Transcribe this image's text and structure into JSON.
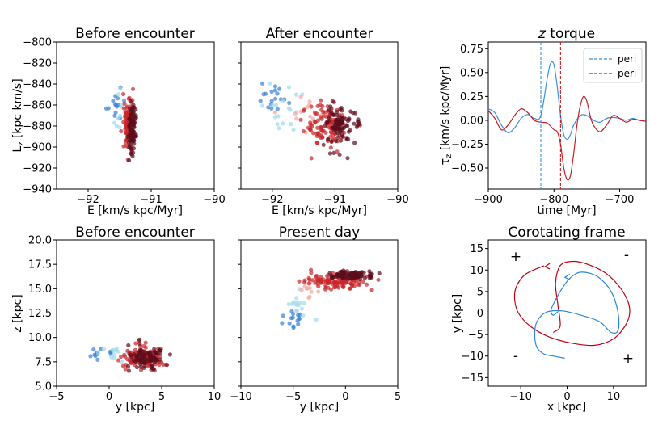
{
  "chart_data": [
    {
      "type": "scatter",
      "title": "Before encounter",
      "xlabel": "E [km/s kpc/Myr]",
      "ylabel": "L_z [kpc km/s]",
      "xlim": [
        -92.5,
        -90
      ],
      "ylim": [
        -940,
        -800
      ],
      "xticks": [
        -92,
        -91,
        -90
      ],
      "xticklabels": [
        "−92",
        "−91",
        "−90"
      ],
      "yticks": [
        -940,
        -920,
        -900,
        -880,
        -860,
        -840,
        -820,
        -800
      ],
      "yticklabels": [
        "−940",
        "−920",
        "−900",
        "−880",
        "−860",
        "−840",
        "−820",
        "−800"
      ],
      "groups": [
        {
          "name": "blue",
          "color": "#3a7fd6",
          "x_center": -91.53,
          "x_spread": 0.06,
          "y_center": -858,
          "y_spread": 9,
          "n": 14
        },
        {
          "name": "light-blue",
          "color": "#9fd8ee",
          "x_center": -91.47,
          "x_spread": 0.05,
          "y_center": -865,
          "y_spread": 10,
          "n": 12
        },
        {
          "name": "red",
          "color": "#c8262b",
          "x_center": -91.36,
          "x_spread": 0.04,
          "y_center": -878,
          "y_spread": 13,
          "n": 120
        },
        {
          "name": "dark-red",
          "color": "#5c0d1b",
          "x_center": -91.3,
          "x_spread": 0.03,
          "y_center": -880,
          "y_spread": 12,
          "n": 80
        }
      ]
    },
    {
      "type": "scatter",
      "title": "After encounter",
      "xlabel": "E [km/s kpc/Myr]",
      "ylabel": "",
      "xlim": [
        -92.5,
        -90
      ],
      "ylim": [
        -940,
        -800
      ],
      "xticks": [
        -92,
        -91,
        -90
      ],
      "xticklabels": [
        "−92",
        "−91",
        "−90"
      ],
      "groups": [
        {
          "name": "blue",
          "color": "#3a7fd6",
          "x_center": -92.0,
          "x_spread": 0.12,
          "y_center": -852,
          "y_spread": 9,
          "n": 18
        },
        {
          "name": "light-blue",
          "color": "#9fd8ee",
          "x_center": -91.85,
          "x_spread": 0.15,
          "y_center": -862,
          "y_spread": 10,
          "n": 18
        },
        {
          "name": "light-red",
          "color": "#f4a6a0",
          "x_center": -91.5,
          "x_spread": 0.15,
          "y_center": -870,
          "y_spread": 8,
          "n": 15
        },
        {
          "name": "red",
          "color": "#c8262b",
          "x_center": -91.15,
          "x_spread": 0.18,
          "y_center": -878,
          "y_spread": 10,
          "n": 110
        },
        {
          "name": "dark-red",
          "color": "#5c0d1b",
          "x_center": -90.9,
          "x_spread": 0.12,
          "y_center": -880,
          "y_spread": 9,
          "n": 90
        }
      ]
    },
    {
      "type": "line",
      "title": "z torque",
      "xlabel": "time [Myr]",
      "ylabel": "τ_z [km/s kpc/Myr]",
      "xlim": [
        -900,
        -660
      ],
      "ylim": [
        -0.72,
        0.82
      ],
      "xticks": [
        -900,
        -800,
        -700
      ],
      "xticklabels": [
        "−900",
        "−800",
        "−700"
      ],
      "yticks": [
        -0.5,
        -0.25,
        0.0,
        0.25,
        0.5,
        0.75
      ],
      "yticklabels": [
        "−0.50",
        "−0.25",
        "0.00",
        "0.25",
        "0.50",
        "0.75"
      ],
      "series": [
        {
          "name": "blue",
          "color": "#3a8fe0",
          "x": [
            -900,
            -890,
            -880,
            -870,
            -860,
            -850,
            -840,
            -830,
            -820,
            -810,
            -805,
            -800,
            -795,
            -790,
            -785,
            -780,
            -775,
            -770,
            -760,
            -750,
            -740,
            -730,
            -720,
            -710,
            -700,
            -690,
            -680,
            -670,
            -660
          ],
          "y": [
            0.12,
            0.08,
            -0.05,
            -0.13,
            -0.08,
            0.02,
            0.06,
            0.02,
            0.05,
            0.45,
            0.6,
            0.58,
            0.35,
            0.05,
            -0.15,
            -0.2,
            -0.15,
            -0.05,
            0.05,
            0.05,
            0.0,
            -0.02,
            0.02,
            0.03,
            0.02,
            0.0,
            0.02,
            0.0,
            -0.01
          ]
        },
        {
          "name": "red",
          "color": "#c62026",
          "x": [
            -900,
            -890,
            -880,
            -870,
            -860,
            -850,
            -840,
            -830,
            -820,
            -810,
            -800,
            -795,
            -790,
            -785,
            -780,
            -775,
            -770,
            -765,
            -760,
            -755,
            -750,
            -745,
            -740,
            -730,
            -720,
            -710,
            -700,
            -690,
            -680,
            -670,
            -660
          ],
          "y": [
            0.1,
            0.02,
            -0.1,
            -0.05,
            0.05,
            0.12,
            0.08,
            0.0,
            -0.02,
            -0.03,
            -0.1,
            -0.12,
            -0.25,
            -0.5,
            -0.62,
            -0.58,
            -0.35,
            -0.05,
            0.15,
            0.25,
            0.2,
            0.05,
            -0.05,
            -0.12,
            -0.05,
            0.05,
            0.02,
            -0.02,
            0.01,
            0.0,
            -0.01
          ]
        }
      ],
      "vlines": [
        {
          "x": -820,
          "color": "#3a8fe0",
          "label": "peri"
        },
        {
          "x": -790,
          "color": "#c62026",
          "label": "peri"
        }
      ],
      "legend": [
        "peri",
        "peri"
      ],
      "legend_loc": "top-right"
    },
    {
      "type": "scatter",
      "title": "Before encounter",
      "xlabel": "y [kpc]",
      "ylabel": "z [kpc]",
      "xlim": [
        -5,
        10
      ],
      "ylim": [
        5.0,
        20.0
      ],
      "xticks": [
        -5,
        0,
        5,
        10
      ],
      "xticklabels": [
        "−5",
        "0",
        "5",
        "10"
      ],
      "yticks": [
        5.0,
        7.5,
        10.0,
        12.5,
        15.0,
        17.5,
        20.0
      ],
      "yticklabels": [
        "5.0",
        "7.5",
        "10.0",
        "12.5",
        "15.0",
        "17.5",
        "20.0"
      ],
      "groups": [
        {
          "name": "blue",
          "color": "#3a7fd6",
          "x_center": -1.0,
          "x_spread": 1.0,
          "y_center": 8.3,
          "y_spread": 0.3,
          "n": 12
        },
        {
          "name": "light-blue",
          "color": "#9fd8ee",
          "x_center": 0.5,
          "x_spread": 0.8,
          "y_center": 8.4,
          "y_spread": 0.4,
          "n": 12
        },
        {
          "name": "red",
          "color": "#c8262b",
          "x_center": 3.2,
          "x_spread": 1.0,
          "y_center": 8.0,
          "y_spread": 0.6,
          "n": 120
        },
        {
          "name": "dark-red",
          "color": "#5c0d1b",
          "x_center": 3.5,
          "x_spread": 0.8,
          "y_center": 7.9,
          "y_spread": 0.5,
          "n": 80
        }
      ]
    },
    {
      "type": "scatter",
      "title": "Present day",
      "xlabel": "y [kpc]",
      "ylabel": "",
      "xlim": [
        -10,
        5
      ],
      "ylim": [
        5.0,
        20.0
      ],
      "xticks": [
        -10,
        -5,
        0,
        5
      ],
      "xticklabels": [
        "−10",
        "−5",
        "0",
        "5"
      ],
      "groups": [
        {
          "name": "blue",
          "color": "#3a7fd6",
          "x_center": -5.0,
          "x_spread": 0.4,
          "y_center": 11.8,
          "y_spread": 0.6,
          "n": 15
        },
        {
          "name": "light-blue",
          "color": "#9fd8ee",
          "x_center": -4.3,
          "x_spread": 0.5,
          "y_center": 13.3,
          "y_spread": 0.6,
          "n": 15
        },
        {
          "name": "light-red",
          "color": "#f4a6a0",
          "x_center": -3.5,
          "x_spread": 0.5,
          "y_center": 14.8,
          "y_spread": 0.4,
          "n": 12
        },
        {
          "name": "red",
          "color": "#c8262b",
          "x_center": -1.0,
          "x_spread": 1.4,
          "y_center": 15.8,
          "y_spread": 0.4,
          "n": 110
        },
        {
          "name": "dark-red",
          "color": "#5c0d1b",
          "x_center": 0.5,
          "x_spread": 1.0,
          "y_center": 16.4,
          "y_spread": 0.2,
          "n": 90
        }
      ]
    },
    {
      "type": "line",
      "title": "Corotating frame",
      "xlabel": "x [kpc]",
      "ylabel": "y [kpc]",
      "xlim": [
        -17,
        17
      ],
      "ylim": [
        -17,
        17
      ],
      "xticks": [
        -10,
        0,
        10
      ],
      "xticklabels": [
        "−10",
        "0",
        "10"
      ],
      "yticks": [
        -15,
        -10,
        -5,
        0,
        5,
        10,
        15
      ],
      "yticklabels": [
        "−15",
        "−10",
        "−5",
        "0",
        "5",
        "10",
        "15"
      ],
      "series": [
        {
          "name": "red",
          "color": "#c00010",
          "x": [
            -5,
            -9,
            -11,
            -11.3,
            -10.5,
            -8,
            -4,
            1,
            6,
            10,
            12.5,
            13.5,
            13,
            11,
            8,
            4,
            1,
            -1.5,
            -2.5,
            -2,
            -1.5,
            -3
          ],
          "y": [
            11,
            9,
            6,
            3,
            0,
            -3,
            -5.5,
            -7,
            -7.5,
            -6,
            -3,
            0,
            3,
            6.5,
            9.5,
            11.5,
            12,
            11,
            7,
            2,
            -3,
            -4.5
          ]
        },
        {
          "name": "blue",
          "color": "#2b86d6",
          "x": [
            -0.5,
            -3,
            -5,
            -6.5,
            -7,
            -6.5,
            -4.5,
            -1,
            3,
            7,
            9.5,
            11,
            11,
            9.5,
            6.5,
            3,
            0.5,
            -1.5,
            -3,
            -3.5,
            -3,
            -2
          ],
          "y": [
            -10.5,
            -10,
            -9.5,
            -8,
            -5,
            -2,
            0.2,
            0.5,
            -0.5,
            -2,
            -4.5,
            -4,
            0,
            5,
            8.5,
            9.5,
            8,
            5,
            2,
            0.5,
            -0.5,
            0.3
          ]
        }
      ],
      "arrows": [
        {
          "x": -4.6,
          "y": 10.8,
          "color": "#c00010"
        },
        {
          "x": -0.3,
          "y": 8.3,
          "color": "#2b86d6"
        }
      ],
      "annotations": [
        "+",
        "-",
        "-",
        "+"
      ]
    }
  ]
}
